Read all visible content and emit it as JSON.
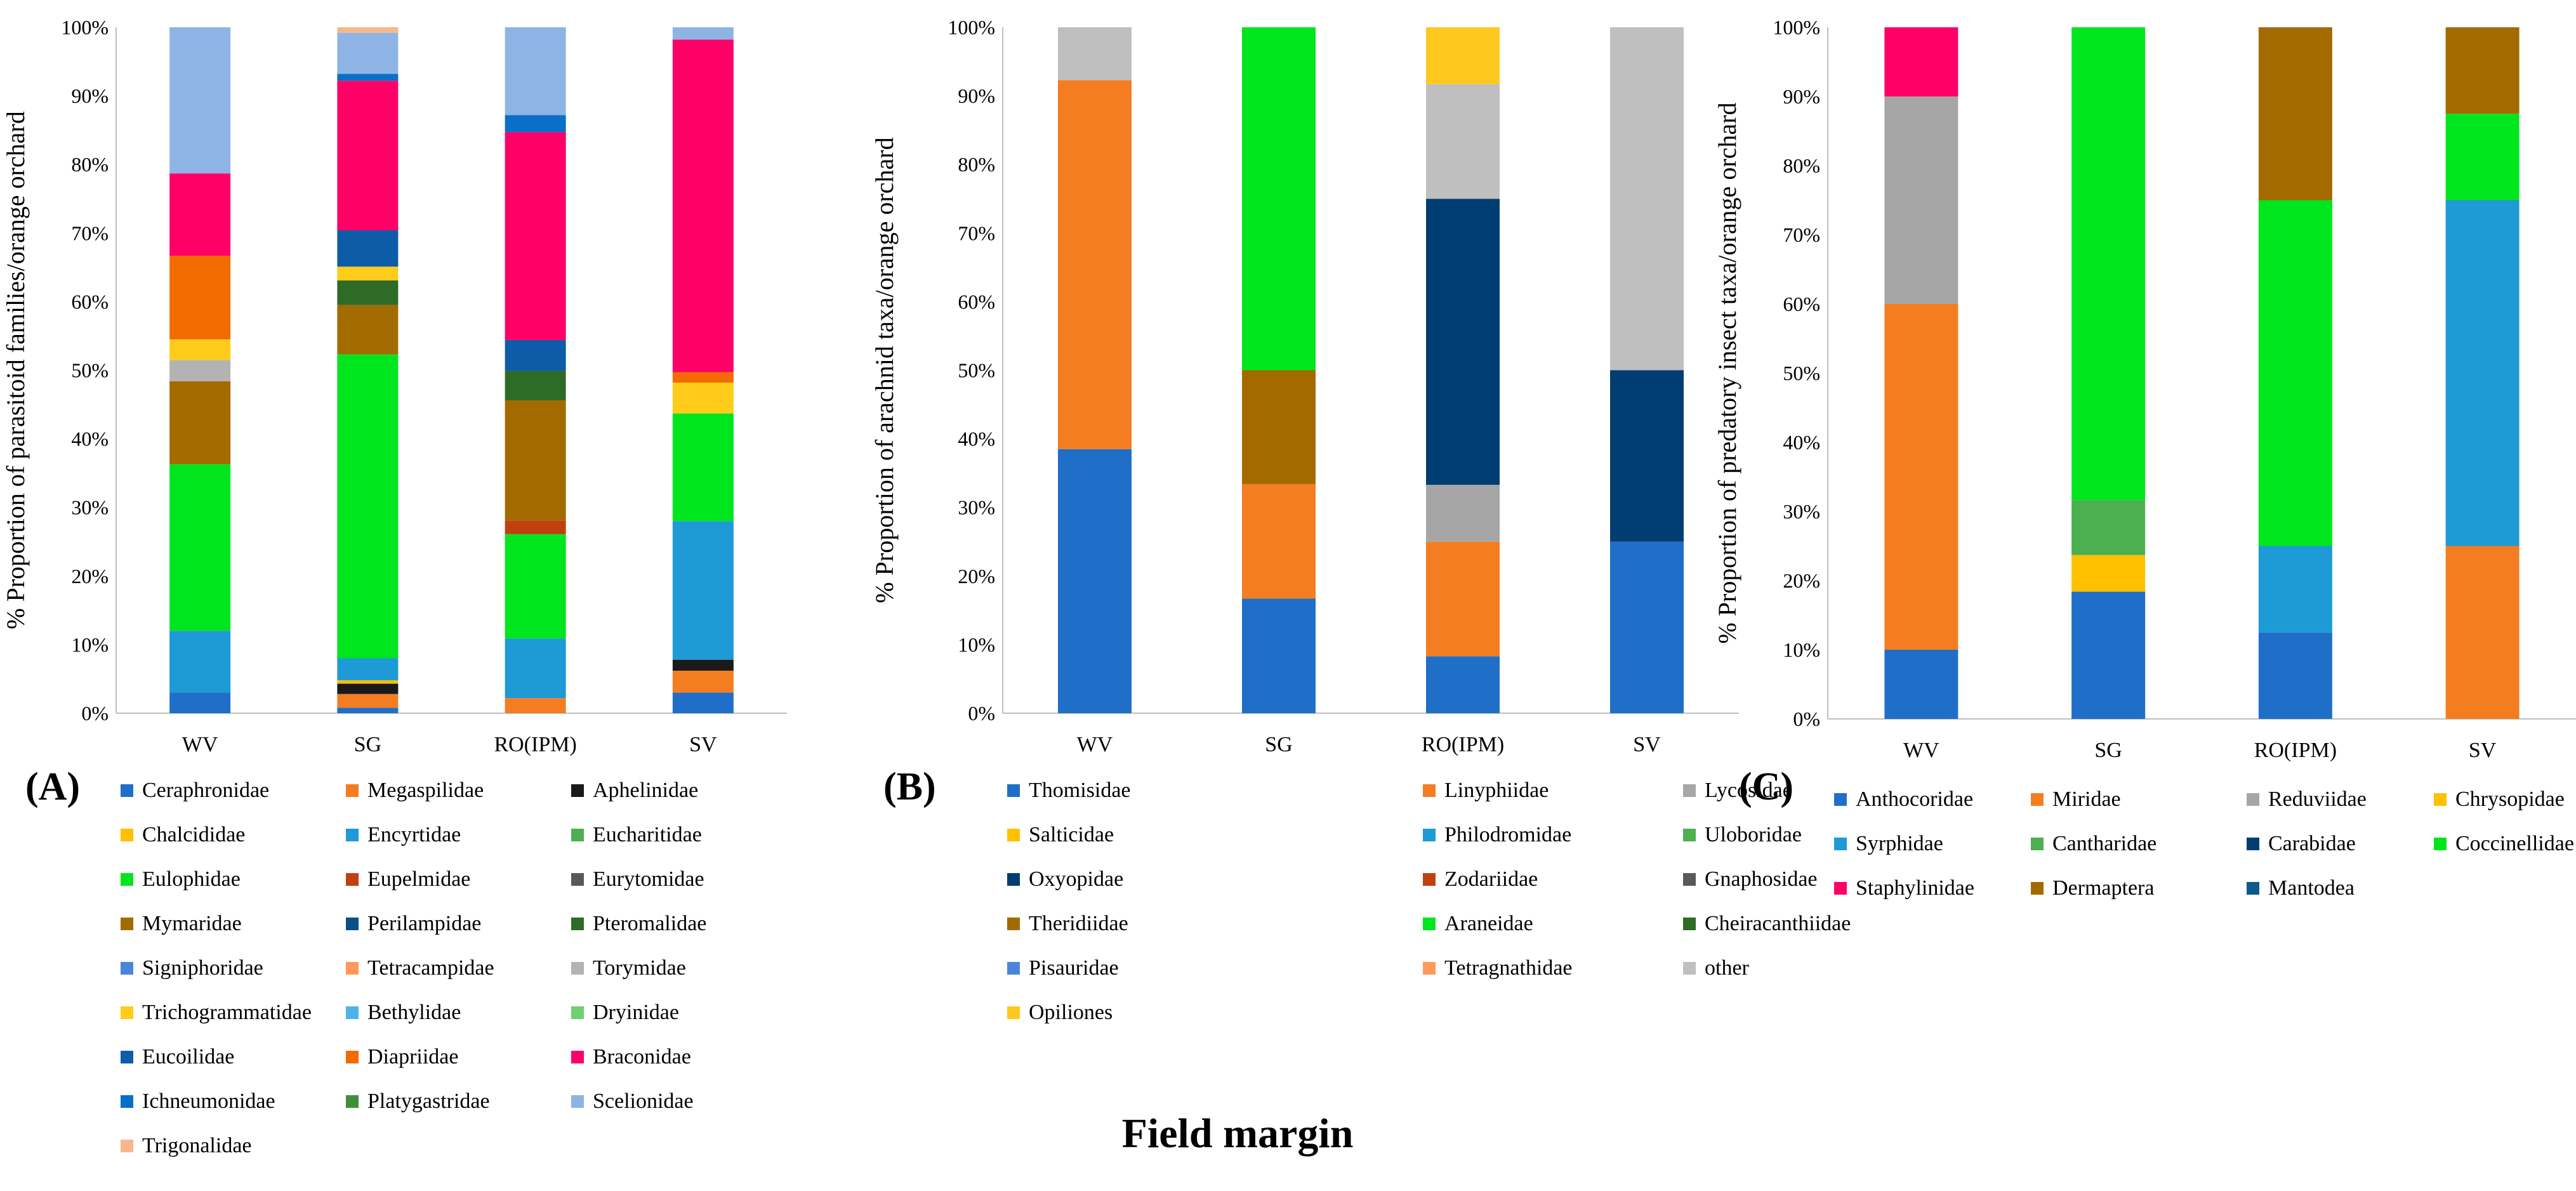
{
  "x_axis_label": "Field margin",
  "chart_data": [
    {
      "type": "bar",
      "stacked": true,
      "panel_label": "(A)",
      "ylabel": "% Proportion of parasitoid families/orange orchard",
      "ylim": [
        0,
        100
      ],
      "ytick_labels": [
        "0%",
        "10%",
        "20%",
        "30%",
        "40%",
        "50%",
        "60%",
        "70%",
        "80%",
        "90%",
        "100%"
      ],
      "categories": [
        "WV",
        "SG",
        "RO(IPM)",
        "SV"
      ],
      "series": [
        {
          "name": "Ceraphronidae",
          "color": "#1f6fc8",
          "values": [
            3,
            0.8,
            0,
            3
          ]
        },
        {
          "name": "Megaspilidae",
          "color": "#f47d22",
          "values": [
            0,
            2,
            2.2,
            3.2
          ]
        },
        {
          "name": "Aphelinidae",
          "color": "#1a1a1a",
          "values": [
            0,
            1.5,
            0,
            1.6
          ]
        },
        {
          "name": "Chalcididae",
          "color": "#ffc000",
          "values": [
            0,
            0.5,
            0,
            0
          ]
        },
        {
          "name": "Encyrtidae",
          "color": "#1e9ad6",
          "values": [
            9,
            3.2,
            8.7,
            20.2
          ]
        },
        {
          "name": "Eucharitidae",
          "color": "#4caf50",
          "values": [
            0,
            0,
            0,
            0
          ]
        },
        {
          "name": "Eulophidae",
          "color": "#00e61e",
          "values": [
            24.3,
            44.3,
            15.2,
            15.7
          ]
        },
        {
          "name": "Eupelmidae",
          "color": "#c0410e",
          "values": [
            0,
            0,
            2,
            0
          ]
        },
        {
          "name": "Eurytomidae",
          "color": "#595959",
          "values": [
            0,
            0,
            0,
            0
          ]
        },
        {
          "name": "Mymaridae",
          "color": "#a36a00",
          "values": [
            12.1,
            7.2,
            17.5,
            0
          ]
        },
        {
          "name": "Perilampidae",
          "color": "#0b4f8a",
          "values": [
            0,
            0,
            0,
            0
          ]
        },
        {
          "name": "Pteromalidae",
          "color": "#2e6b27",
          "values": [
            0,
            3.6,
            4.3,
            0
          ]
        },
        {
          "name": "Signiphoridae",
          "color": "#4a86d8",
          "values": [
            0,
            0,
            0,
            0
          ]
        },
        {
          "name": "Tetracampidae",
          "color": "#ff9a5a",
          "values": [
            0,
            0,
            0,
            0
          ]
        },
        {
          "name": "Torymidae",
          "color": "#b3b3b3",
          "values": [
            3.1,
            0,
            0,
            0
          ]
        },
        {
          "name": "Trichogrammatidae",
          "color": "#ffcc1a",
          "values": [
            3,
            2,
            0,
            4.5
          ]
        },
        {
          "name": "Bethylidae",
          "color": "#4eb3e8",
          "values": [
            0,
            0,
            0,
            0
          ]
        },
        {
          "name": "Dryinidae",
          "color": "#6fd06f",
          "values": [
            0,
            0,
            0,
            0
          ]
        },
        {
          "name": "Eucoilidae",
          "color": "#0d5ca8",
          "values": [
            0,
            5.3,
            4.5,
            0
          ]
        },
        {
          "name": "Diapriidae",
          "color": "#f26b00",
          "values": [
            12.2,
            0,
            0,
            1.5
          ]
        },
        {
          "name": "Braconidae",
          "color": "#ff0066",
          "values": [
            12,
            21.8,
            30.3,
            48.5
          ]
        },
        {
          "name": "Ichneumonidae",
          "color": "#0a6fc7",
          "values": [
            0,
            1,
            2.5,
            0
          ]
        },
        {
          "name": "Platygastridae",
          "color": "#3f8f3a",
          "values": [
            0,
            0,
            0,
            0
          ]
        },
        {
          "name": "Scelionidae",
          "color": "#8eb4e6",
          "values": [
            21.3,
            6,
            12.8,
            1.8
          ]
        },
        {
          "name": "Trigonalidae",
          "color": "#f8b78a",
          "values": [
            0,
            0.8,
            0,
            0
          ]
        }
      ]
    },
    {
      "type": "bar",
      "stacked": true,
      "panel_label": "(B)",
      "ylabel": "% Proportion of arachnid taxa/orange orchard",
      "ylim": [
        0,
        100
      ],
      "ytick_labels": [
        "0%",
        "10%",
        "20%",
        "30%",
        "40%",
        "50%",
        "60%",
        "70%",
        "80%",
        "90%",
        "100%"
      ],
      "categories": [
        "WV",
        "SG",
        "RO(IPM)",
        "SV"
      ],
      "series": [
        {
          "name": "Thomisidae",
          "color": "#1f6fc8",
          "values": [
            38.5,
            16.7,
            8.3,
            25
          ]
        },
        {
          "name": "Linyphiidae",
          "color": "#f47d22",
          "values": [
            53.8,
            16.7,
            16.7,
            0
          ]
        },
        {
          "name": "Lycosidae",
          "color": "#a6a6a6",
          "values": [
            0,
            0,
            8.3,
            0
          ]
        },
        {
          "name": "Salticidae",
          "color": "#ffc000",
          "values": [
            0,
            0,
            0,
            0
          ]
        },
        {
          "name": "Philodromidae",
          "color": "#1e9ad6",
          "values": [
            0,
            0,
            0,
            0
          ]
        },
        {
          "name": "Uloboridae",
          "color": "#4caf50",
          "values": [
            0,
            0,
            0,
            0
          ]
        },
        {
          "name": "Oxyopidae",
          "color": "#003d73",
          "values": [
            0,
            0,
            41.7,
            25
          ]
        },
        {
          "name": "Zodariidae",
          "color": "#c0410e",
          "values": [
            0,
            0,
            0,
            0
          ]
        },
        {
          "name": "Gnaphosidae",
          "color": "#595959",
          "values": [
            0,
            0,
            0,
            0
          ]
        },
        {
          "name": "Theridiidae",
          "color": "#a36a00",
          "values": [
            0,
            16.6,
            0,
            0
          ]
        },
        {
          "name": "Araneidae",
          "color": "#00e61e",
          "values": [
            0,
            50,
            0,
            0
          ]
        },
        {
          "name": "Cheiracanthiidae",
          "color": "#2e6b27",
          "values": [
            0,
            0,
            0,
            0
          ]
        },
        {
          "name": "Pisauridae",
          "color": "#4a86d8",
          "values": [
            0,
            0,
            0,
            0
          ]
        },
        {
          "name": "Tetragnathidae",
          "color": "#ff9a5a",
          "values": [
            0,
            0,
            0,
            0
          ]
        },
        {
          "name": "other",
          "color": "#bfbfbf",
          "values": [
            7.7,
            0,
            16.7,
            50
          ]
        },
        {
          "name": "Opiliones",
          "color": "#ffc81e",
          "values": [
            0,
            0,
            8.3,
            0
          ]
        }
      ]
    },
    {
      "type": "bar",
      "stacked": true,
      "panel_label": "(C)",
      "ylabel": "% Proportion of predatory  insect taxa/orange orchard",
      "ylim": [
        0,
        100
      ],
      "ytick_labels": [
        "0%",
        "10%",
        "20%",
        "30%",
        "40%",
        "50%",
        "60%",
        "70%",
        "80%",
        "90%",
        "100%"
      ],
      "categories": [
        "WV",
        "SG",
        "RO(IPM)",
        "SV"
      ],
      "series": [
        {
          "name": "Anthocoridae",
          "color": "#1f6fc8",
          "values": [
            10,
            18.4,
            12.5,
            0
          ]
        },
        {
          "name": "Miridae",
          "color": "#f47d22",
          "values": [
            50,
            0,
            0,
            25
          ]
        },
        {
          "name": "Reduviidae",
          "color": "#a6a6a6",
          "values": [
            30,
            0,
            0,
            0
          ]
        },
        {
          "name": "Chrysopidae",
          "color": "#ffc000",
          "values": [
            0,
            5.3,
            0,
            0
          ]
        },
        {
          "name": "Syrphidae",
          "color": "#1e9ad6",
          "values": [
            0,
            0,
            12.5,
            50
          ]
        },
        {
          "name": "Cantharidae",
          "color": "#4caf50",
          "values": [
            0,
            7.9,
            0,
            0
          ]
        },
        {
          "name": "Carabidae",
          "color": "#003d73",
          "values": [
            0,
            0,
            0,
            0
          ]
        },
        {
          "name": "Coccinellidae",
          "color": "#00e61e",
          "values": [
            0,
            68.4,
            50,
            12.5
          ]
        },
        {
          "name": "Staphylinidae",
          "color": "#ff0066",
          "values": [
            10,
            0,
            0,
            0
          ]
        },
        {
          "name": "Dermaptera",
          "color": "#a36a00",
          "values": [
            0,
            0,
            25,
            12.5
          ]
        },
        {
          "name": "Mantodea",
          "color": "#0b5a8a",
          "values": [
            0,
            0,
            0,
            0
          ]
        }
      ]
    }
  ]
}
